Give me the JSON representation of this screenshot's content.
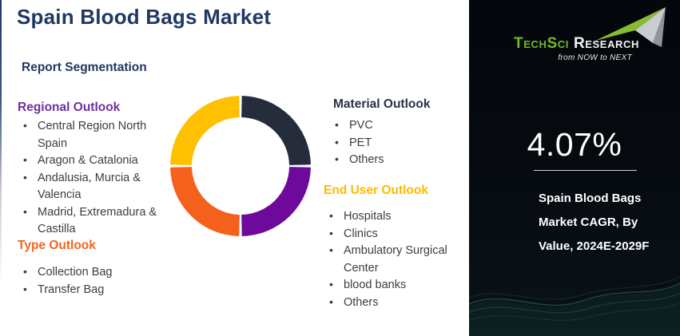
{
  "page": {
    "title": "Spain Blood Bags Market",
    "subtitle": "Report Segmentation"
  },
  "columns": {
    "regional": {
      "heading": "Regional Outlook",
      "color": "#7030A0",
      "items": [
        "Central Region North Spain",
        "Aragon & Catalonia",
        "Andalusia, Murcia & Valencia",
        "Madrid, Extremadura & Castilla"
      ]
    },
    "type": {
      "heading": "Type Outlook",
      "color": "#F4641C",
      "items": [
        "Collection Bag",
        "Transfer Bag"
      ]
    },
    "material": {
      "heading": "Material Outlook",
      "color": "#2A3340",
      "items": [
        "PVC",
        "PET",
        "Others"
      ]
    },
    "end_user": {
      "heading": "End User Outlook",
      "color": "#FFB900",
      "items": [
        "Hospitals",
        "Clinics",
        "Ambulatory Surgical Center",
        "blood banks",
        "Others"
      ]
    }
  },
  "sidebar": {
    "logo": {
      "brand_primary": "TechSci",
      "brand_secondary": "Research",
      "tagline": "from NOW to NEXT"
    },
    "cagr_value": "4.07%",
    "caption": "Spain Blood Bags Market CAGR, By Value, 2024E-2029F"
  },
  "colors": {
    "title_navy": "#1F3864",
    "logo_green": "#76B82A",
    "sidebar_background": "#060B10",
    "body_text": "#3D3D3D"
  },
  "chart_data": {
    "type": "pie",
    "subtype": "donut",
    "title": "",
    "categories": [
      "Material Outlook",
      "Regional Outlook",
      "Type Outlook",
      "End User Outlook"
    ],
    "values": [
      25,
      25,
      25,
      25
    ],
    "colors": [
      "#252D3C",
      "#6D0A9C",
      "#F4611C",
      "#FFC000"
    ],
    "start_angle_deg": 0,
    "inner_radius_ratio": 0.69,
    "legend": "none"
  }
}
